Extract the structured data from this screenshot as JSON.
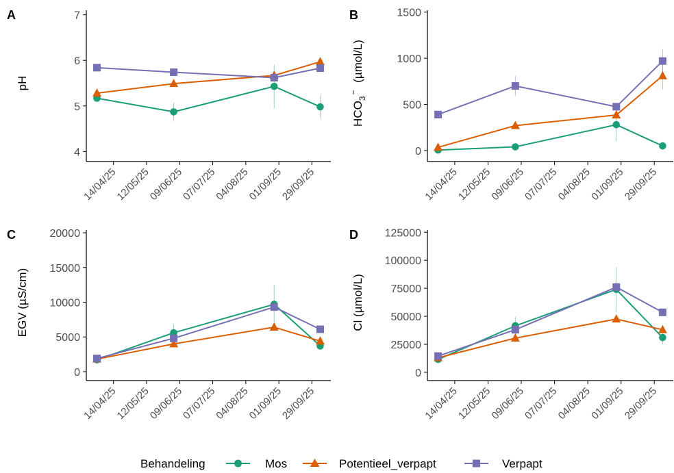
{
  "colors": {
    "Mos": "#1b9e77",
    "Potentieel_verpapt": "#d95f02",
    "Verpapt": "#7570b3",
    "axis": "#000000",
    "tick_label": "#4d4d4d"
  },
  "legend": {
    "title": "Behandeling",
    "items": [
      {
        "name": "Mos",
        "marker": "circle"
      },
      {
        "name": "Potentieel_verpapt",
        "marker": "triangle"
      },
      {
        "name": "Verpapt",
        "marker": "square"
      }
    ],
    "placement": "bottom"
  },
  "x_axis": {
    "type": "date",
    "ticks": [
      "14/04/25",
      "12/05/25",
      "09/06/25",
      "07/07/25",
      "04/08/25",
      "01/09/25",
      "29/09/25"
    ],
    "tick_dates": [
      "2025-04-14",
      "2025-05-12",
      "2025-06-09",
      "2025-07-07",
      "2025-08-04",
      "2025-09-01",
      "2025-09-29"
    ],
    "range": [
      "2025-03-22",
      "2025-10-15"
    ]
  },
  "chart_data": [
    {
      "tag": "A",
      "type": "line",
      "xlabel": "",
      "ylabel": "pH",
      "ylabel_parts": [],
      "ylim": [
        3.9,
        7.1
      ],
      "yticks": [
        4,
        5,
        6,
        7
      ],
      "ytick_labels": [
        "4",
        "5",
        "6",
        "7"
      ],
      "x": [
        "2025-03-31",
        "2025-06-04",
        "2025-08-28",
        "2025-10-06"
      ],
      "series": [
        {
          "name": "Mos",
          "values": [
            5.17,
            4.87,
            5.43,
            4.98
          ],
          "err": [
            0.05,
            0.2,
            0.48,
            0.25
          ]
        },
        {
          "name": "Potentieel_verpapt",
          "values": [
            5.28,
            5.49,
            5.67,
            5.97
          ],
          "err": [
            0,
            0,
            0,
            0
          ]
        },
        {
          "name": "Verpapt",
          "values": [
            5.84,
            5.74,
            5.62,
            5.83
          ],
          "err": [
            0,
            0,
            0,
            0
          ]
        }
      ]
    },
    {
      "tag": "B",
      "type": "line",
      "xlabel": "",
      "ylabel": "",
      "ylabel_parts": [
        "HCO",
        "3",
        "−",
        "(µmol/L)"
      ],
      "ylim": [
        -60,
        1520
      ],
      "yticks": [
        0,
        500,
        1000,
        1500
      ],
      "ytick_labels": [
        "0",
        "500",
        "1000",
        "1500"
      ],
      "x": [
        "2025-03-31",
        "2025-06-04",
        "2025-08-28",
        "2025-10-06"
      ],
      "series": [
        {
          "name": "Mos",
          "values": [
            5,
            40,
            280,
            50
          ],
          "err": [
            0,
            0,
            180,
            0
          ]
        },
        {
          "name": "Potentieel_verpapt",
          "values": [
            35,
            270,
            385,
            810
          ],
          "err": [
            0,
            0,
            0,
            150
          ]
        },
        {
          "name": "Verpapt",
          "values": [
            390,
            700,
            475,
            970
          ],
          "err": [
            0,
            110,
            0,
            130
          ]
        }
      ]
    },
    {
      "tag": "C",
      "type": "line",
      "xlabel": "",
      "ylabel": "EGV  (µS/cm)",
      "ylabel_parts": [],
      "ylim": [
        -500,
        20400
      ],
      "yticks": [
        0,
        5000,
        10000,
        15000,
        20000
      ],
      "ytick_labels": [
        "0",
        "5000",
        "10000",
        "15000",
        "20000"
      ],
      "x": [
        "2025-03-31",
        "2025-06-04",
        "2025-08-28",
        "2025-10-06"
      ],
      "series": [
        {
          "name": "Mos",
          "values": [
            1700,
            5600,
            9700,
            3700
          ],
          "err": [
            0,
            1200,
            2800,
            0
          ]
        },
        {
          "name": "Potentieel_verpapt",
          "values": [
            1800,
            4000,
            6400,
            4400
          ],
          "err": [
            0,
            0,
            0,
            0
          ]
        },
        {
          "name": "Verpapt",
          "values": [
            1900,
            4800,
            9300,
            6100
          ],
          "err": [
            0,
            0,
            0,
            0
          ]
        }
      ]
    },
    {
      "tag": "D",
      "type": "line",
      "xlabel": "",
      "ylabel": "Cl  (µmol/L)",
      "ylabel_parts": [],
      "ylim": [
        -2500,
        127000
      ],
      "yticks": [
        0,
        25000,
        50000,
        75000,
        100000,
        125000
      ],
      "ytick_labels": [
        "0",
        "25000",
        "50000",
        "75000",
        "100000",
        "125000"
      ],
      "x": [
        "2025-03-31",
        "2025-06-04",
        "2025-08-28",
        "2025-10-06"
      ],
      "series": [
        {
          "name": "Mos",
          "values": [
            11500,
            41500,
            74000,
            31000
          ],
          "err": [
            0,
            8000,
            20000,
            6000
          ]
        },
        {
          "name": "Potentieel_verpapt",
          "values": [
            13000,
            30500,
            47500,
            38000
          ],
          "err": [
            0,
            0,
            0,
            0
          ]
        },
        {
          "name": "Verpapt",
          "values": [
            14500,
            38000,
            76000,
            53500
          ],
          "err": [
            0,
            0,
            0,
            0
          ]
        }
      ]
    }
  ]
}
